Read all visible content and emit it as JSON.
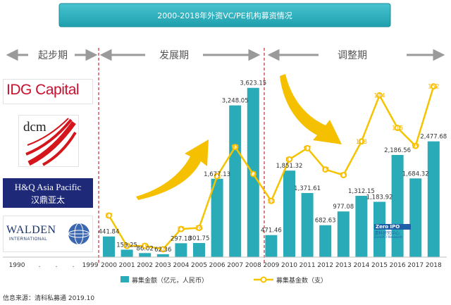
{
  "title": "2000-2018年外资VC/PE机构募资情况",
  "phases": [
    {
      "label": "起步期"
    },
    {
      "label": "发展期"
    },
    {
      "label": "调整期"
    }
  ],
  "logos": {
    "idg": "IDG Capital",
    "dcm": "dcm",
    "hq_line1": "H&Q Asia Pacific",
    "hq_line2": "汉鼎亚太",
    "walden_line1": "WALDEN",
    "walden_line2": "INTERNATIONAL"
  },
  "watermark": {
    "brand": "Zero IPO",
    "line1": "清科研究中心",
    "line2": "ZeroIPO Research"
  },
  "source": "信息来源：清科私募通 2019.10",
  "colors": {
    "bar": "#2aabb8",
    "line": "#f5c400",
    "title_bg": "#2bb0bd",
    "phase_divider": "#c00000"
  },
  "chart_data": {
    "type": "bar",
    "title": "2000-2018年外资VC/PE机构募资情况",
    "x_ticks_pre": [
      "1990",
      ".",
      ".",
      ".",
      "1999"
    ],
    "categories": [
      "2000",
      "2001",
      "2002",
      "2003",
      "2004",
      "2005",
      "2006",
      "2007",
      "2008",
      "2009",
      "2010",
      "2011",
      "2012",
      "2013",
      "2014",
      "2015",
      "2016",
      "2017",
      "2018"
    ],
    "series": [
      {
        "name": "募集金额（亿元，人民币）",
        "type": "bar",
        "values": [
          441.84,
          159.25,
          86.02,
          62.36,
          297.18,
          301.75,
          1677.13,
          3248.05,
          3623.15,
          471.46,
          1851.32,
          1371.61,
          682.63,
          977.08,
          1312.15,
          1183.92,
          2186.56,
          1684.32,
          2477.68
        ],
        "labels": [
          "441.84",
          "159.25",
          "86.02",
          "62.36",
          "297.18",
          "301.75",
          "1,677.13",
          "3,248.05",
          "3,623.15",
          "471.46",
          "1,851.32",
          "1,371.61",
          "682.63",
          "977.08",
          "1,312.15",
          "1,183.92",
          "2,186.56",
          "1,684.32",
          "2,477.68"
        ]
      },
      {
        "name": "募集基金数（支）",
        "type": "line",
        "values": [
          37,
          10,
          10,
          7,
          25,
          26,
          72,
          98,
          74,
          50,
          87,
          97,
          78,
          73,
          103,
          144,
          115,
          99,
          152
        ]
      }
    ],
    "ylim_bars": [
      0,
      3800
    ],
    "ylim_line": [
      0,
      185
    ],
    "grid": false,
    "legend": "bottom"
  }
}
